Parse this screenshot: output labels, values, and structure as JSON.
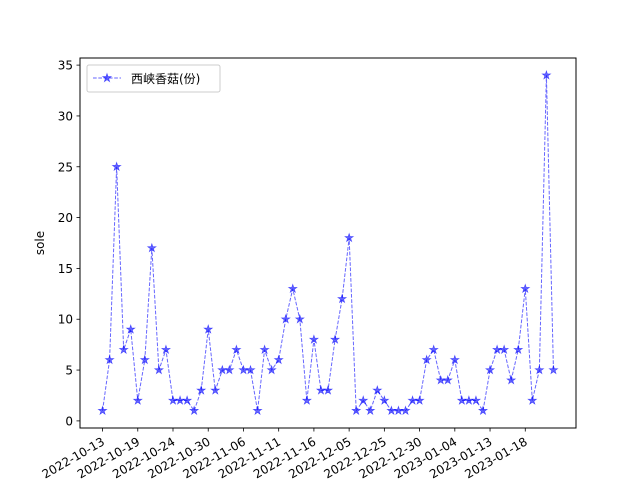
{
  "chart_data": {
    "type": "line",
    "xlabel": "",
    "ylabel": "sole",
    "ylim": [
      -0.7,
      35.7
    ],
    "yticks": [
      0,
      5,
      10,
      15,
      20,
      25,
      30,
      35
    ],
    "xtick_labels": [
      "2022-10-13",
      "2022-10-19",
      "2022-10-24",
      "2022-10-30",
      "2022-11-06",
      "2022-11-11",
      "2022-11-16",
      "2022-12-05",
      "2022-12-25",
      "2022-12-30",
      "2023-01-04",
      "2023-01-13",
      "2023-01-18"
    ],
    "xtick_positions": [
      0,
      5,
      10,
      15,
      20,
      25,
      30,
      35,
      40,
      45,
      50,
      55,
      60
    ],
    "grid": false,
    "legend_position": "top-left",
    "line_color": "#0000ff",
    "series": [
      {
        "name": "西峡香菇(份)",
        "values": [
          1,
          6,
          25,
          7,
          9,
          2,
          6,
          17,
          5,
          7,
          2,
          2,
          2,
          1,
          3,
          9,
          3,
          5,
          5,
          7,
          5,
          5,
          1,
          7,
          5,
          6,
          10,
          13,
          10,
          2,
          8,
          3,
          3,
          8,
          12,
          18,
          1,
          2,
          1,
          3,
          2,
          1,
          1,
          1,
          2,
          2,
          6,
          7,
          4,
          4,
          6,
          2,
          2,
          2,
          1,
          5,
          7,
          7,
          4,
          7,
          13,
          2,
          5,
          34,
          5
        ]
      }
    ]
  }
}
